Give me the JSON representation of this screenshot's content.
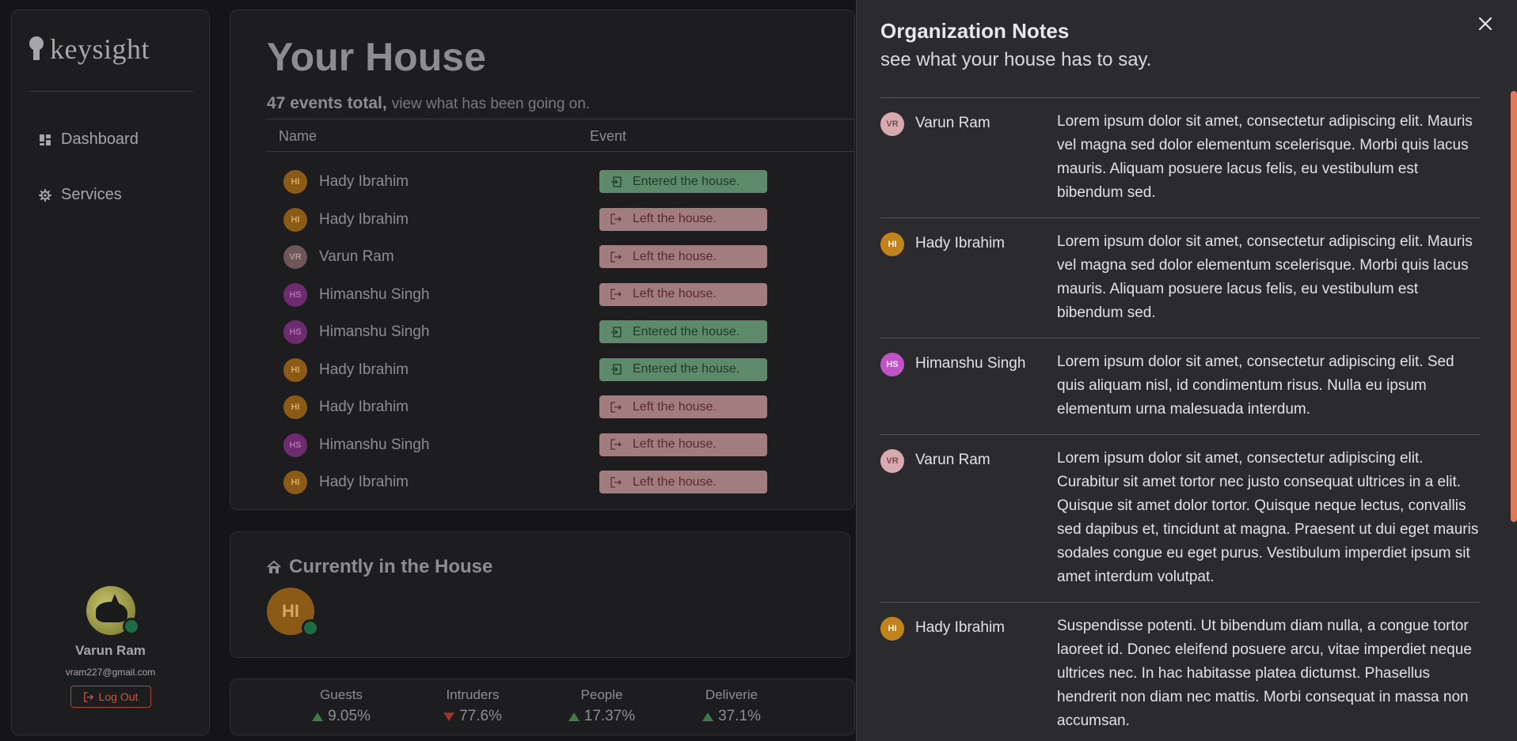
{
  "sidebar": {
    "logo": "keysight",
    "nav": [
      {
        "label": "Dashboard",
        "icon": "dashboard-icon"
      },
      {
        "label": "Services",
        "icon": "gear-icon"
      }
    ],
    "user": {
      "name": "Varun Ram",
      "email": "vram227@gmail.com",
      "logout_label": "Log Out"
    }
  },
  "events": {
    "title": "Your House",
    "count_text": "47 events total,",
    "subtitle": "view what has been going on.",
    "columns": [
      "Name",
      "Event"
    ],
    "rows": [
      {
        "initials": "HI",
        "name": "Hady Ibrahim",
        "event": "Entered the house.",
        "type": "in"
      },
      {
        "initials": "HI",
        "name": "Hady Ibrahim",
        "event": "Left the house.",
        "type": "out"
      },
      {
        "initials": "VR",
        "name": "Varun Ram",
        "event": "Left the house.",
        "type": "out"
      },
      {
        "initials": "HS",
        "name": "Himanshu Singh",
        "event": "Left the house.",
        "type": "out"
      },
      {
        "initials": "HS",
        "name": "Himanshu Singh",
        "event": "Entered the house.",
        "type": "in"
      },
      {
        "initials": "HI",
        "name": "Hady Ibrahim",
        "event": "Entered the house.",
        "type": "in"
      },
      {
        "initials": "HI",
        "name": "Hady Ibrahim",
        "event": "Left the house.",
        "type": "out"
      },
      {
        "initials": "HS",
        "name": "Himanshu Singh",
        "event": "Left the house.",
        "type": "out"
      },
      {
        "initials": "HI",
        "name": "Hady Ibrahim",
        "event": "Left the house.",
        "type": "out"
      }
    ]
  },
  "current": {
    "title": "Currently in the House",
    "avatar_initials": "HI"
  },
  "stats": [
    {
      "label": "Guests",
      "value": "9.05%",
      "trend": "up"
    },
    {
      "label": "Intruders",
      "value": "77.6%",
      "trend": "down"
    },
    {
      "label": "People",
      "value": "17.37%",
      "trend": "up"
    },
    {
      "label": "Deliverie",
      "value": "37.1%",
      "trend": "up"
    }
  ],
  "drawer": {
    "title": "Organization Notes",
    "subtitle": "see what your house has to say.",
    "notes": [
      {
        "initials": "VR",
        "author": "Varun Ram",
        "text": "Lorem ipsum dolor sit amet, consectetur adipiscing elit. Mauris vel magna sed dolor elementum scelerisque. Morbi quis lacus mauris. Aliquam posuere lacus felis, eu vestibulum est bibendum sed."
      },
      {
        "initials": "HI",
        "author": "Hady Ibrahim",
        "text": "Lorem ipsum dolor sit amet, consectetur adipiscing elit. Mauris vel magna sed dolor elementum scelerisque. Morbi quis lacus mauris. Aliquam posuere lacus felis, eu vestibulum est bibendum sed."
      },
      {
        "initials": "HS",
        "author": "Himanshu Singh",
        "text": "Lorem ipsum dolor sit amet, consectetur adipiscing elit. Sed quis aliquam nisl, id condimentum risus. Nulla eu ipsum elementum urna malesuada interdum."
      },
      {
        "initials": "VR",
        "author": "Varun Ram",
        "text": "Lorem ipsum dolor sit amet, consectetur adipiscing elit. Curabitur sit amet tortor nec justo consequat ultrices in a elit. Quisque sit amet dolor tortor. Quisque neque lectus, convallis sed dapibus et, tincidunt at magna. Praesent ut dui eget mauris sodales congue eu eget purus. Vestibulum imperdiet ipsum sit amet interdum volutpat."
      },
      {
        "initials": "HI",
        "author": "Hady Ibrahim",
        "text": "Suspendisse potenti. Ut bibendum diam nulla, a congue tortor laoreet id. Donec eleifend posuere arcu, vitae imperdiet neque ultrices nec. In hac habitasse platea dictumst. Phasellus hendrerit non diam nec mattis. Morbi consequat in massa non accumsan."
      }
    ]
  },
  "colors": {
    "accent": "#e07a5a",
    "entered": "#5d8a6a",
    "left": "#a27d80",
    "online": "#1e6b45"
  }
}
